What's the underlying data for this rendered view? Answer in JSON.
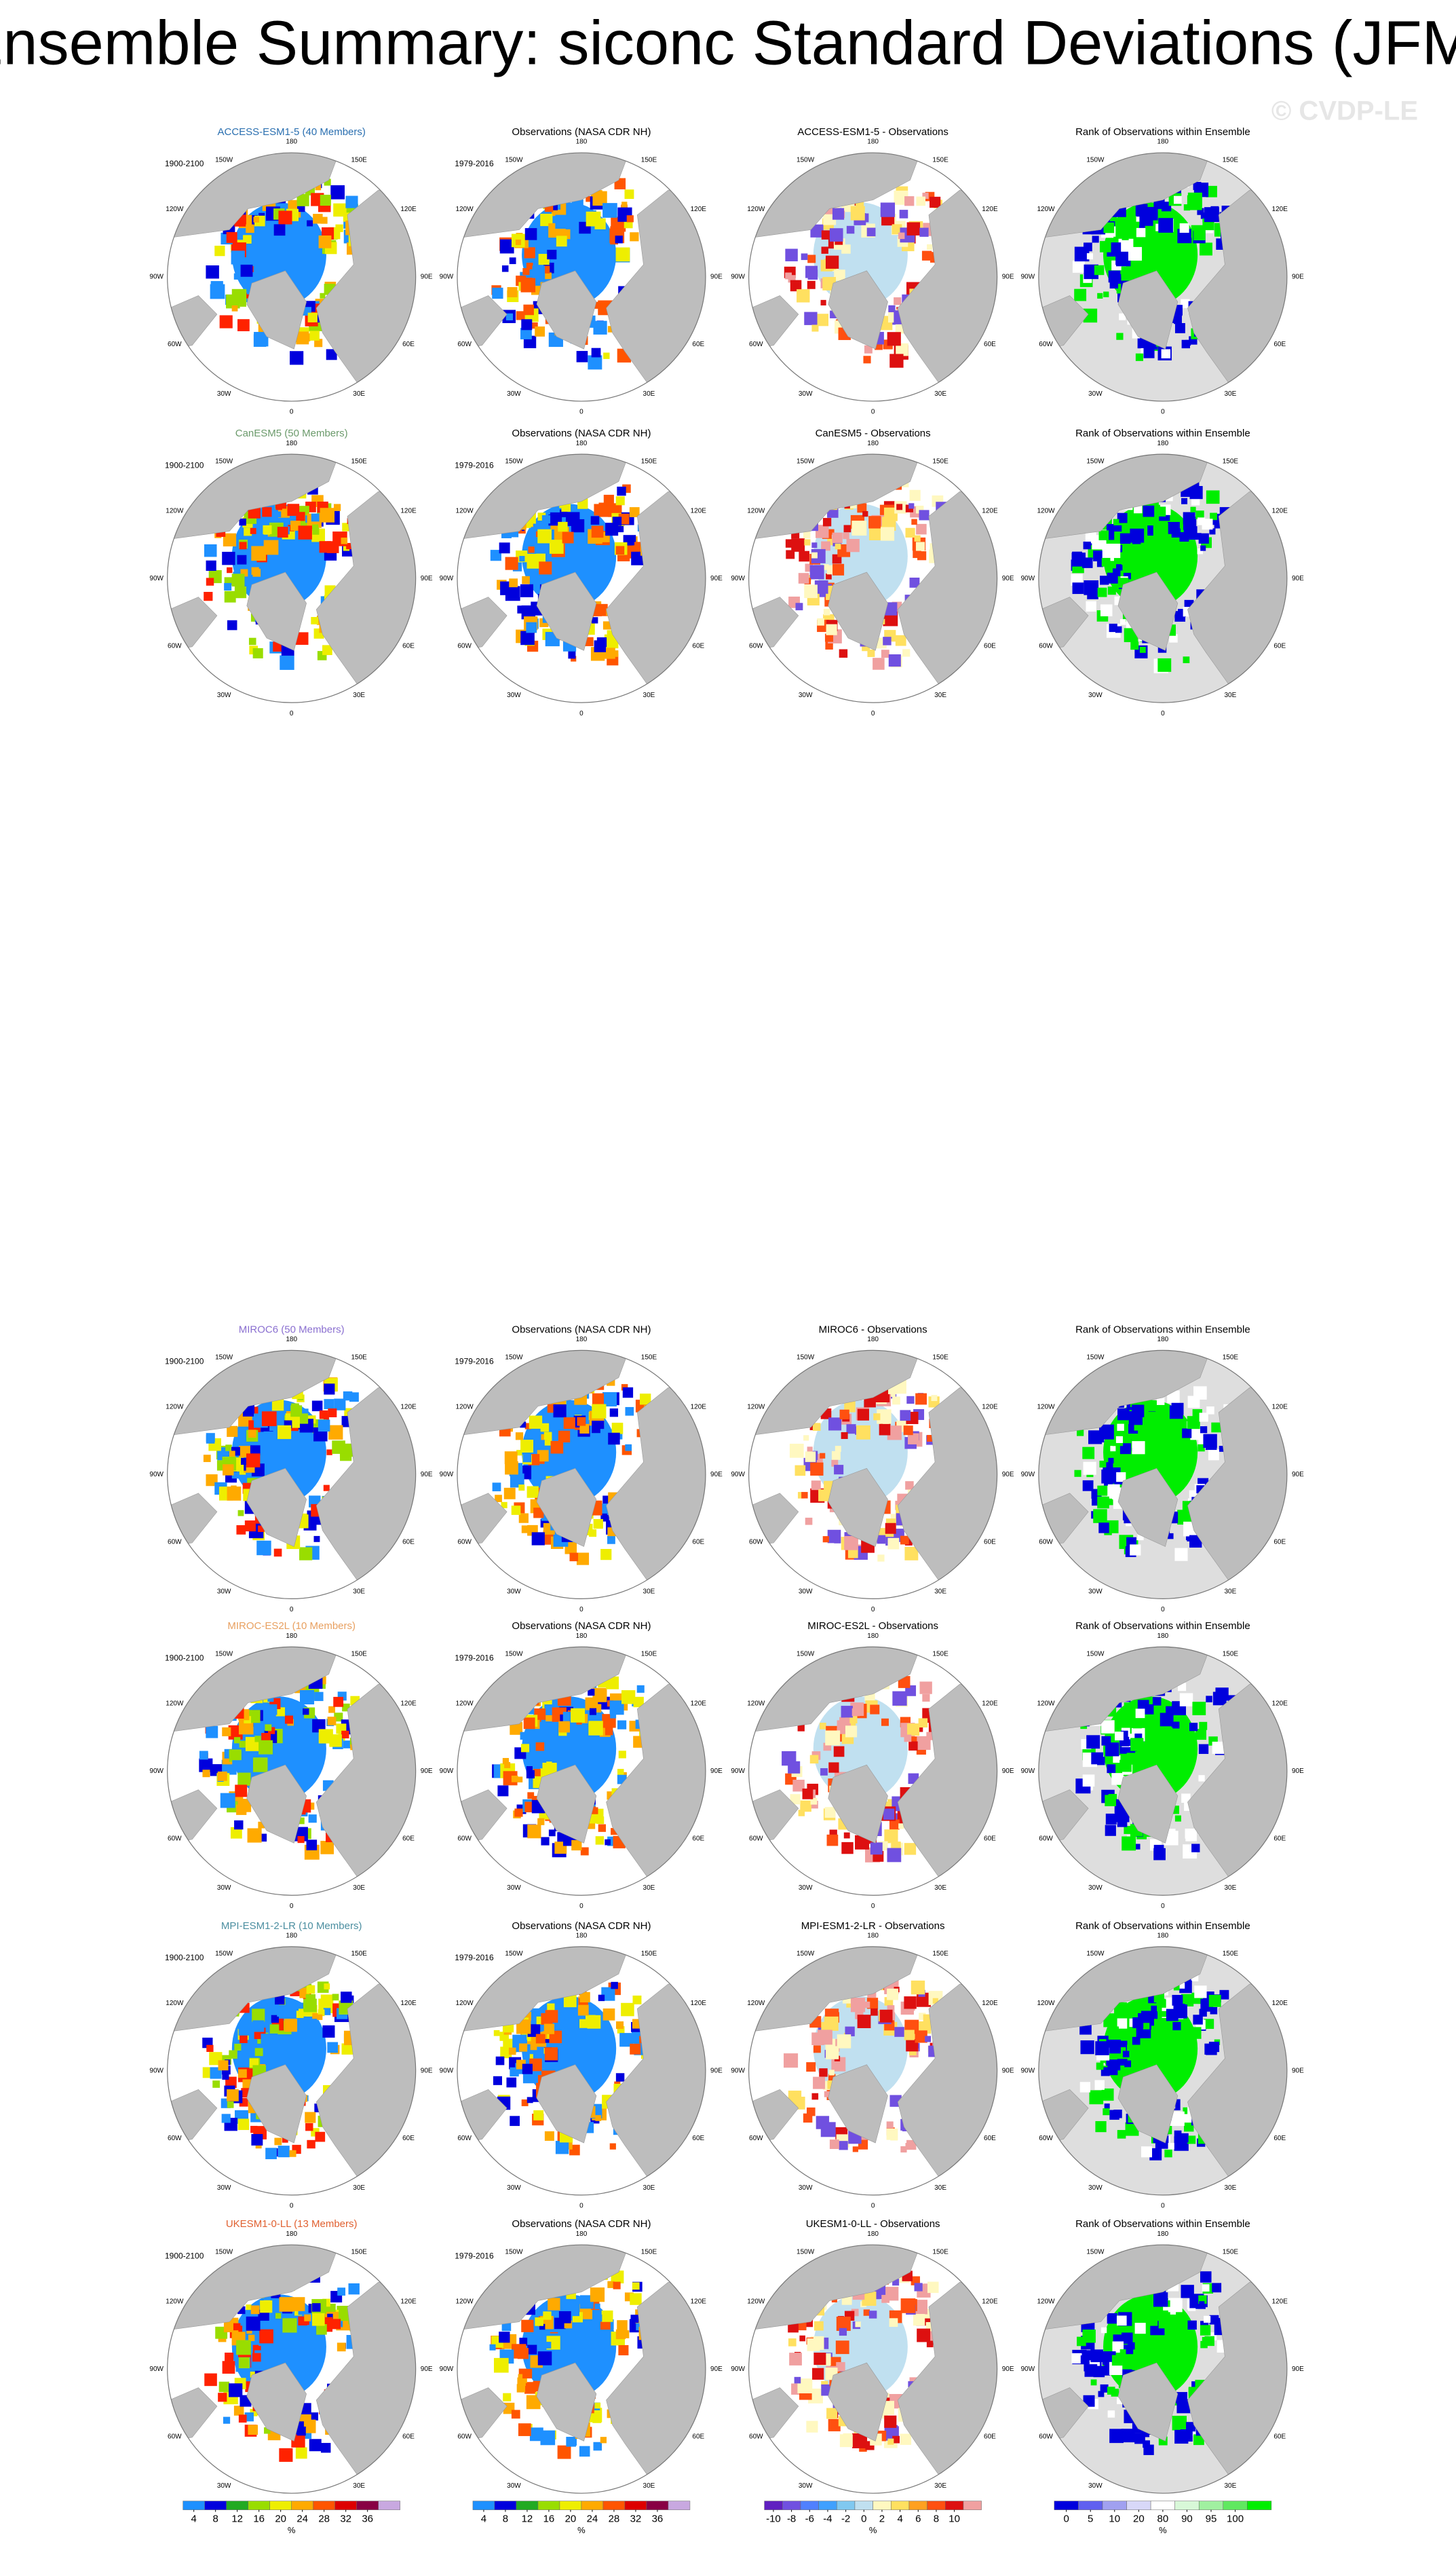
{
  "title": "Ensemble Summary: siconc Standard Deviations (JFM)",
  "watermark": "© CVDP-LE",
  "lon_labels": [
    "180",
    "150W",
    "150E",
    "120W",
    "120E",
    "90W",
    "90E",
    "60W",
    "60E",
    "30W",
    "30E",
    "0"
  ],
  "rows": [
    {
      "model_title": "ACCESS-ESM1-5 (40 Members)",
      "title_color": "#2a6fb0",
      "model_period": "1900-2100",
      "obs_title": "Observations (NASA CDR NH)",
      "obs_period": "1979-2016",
      "diff_title": "ACCESS-ESM1-5 - Observations",
      "rank_title": "Rank of Observations within Ensemble"
    },
    {
      "model_title": "CanESM5 (50 Members)",
      "title_color": "#6b9a6b",
      "model_period": "1900-2100",
      "obs_title": "Observations (NASA CDR NH)",
      "obs_period": "1979-2016",
      "diff_title": "CanESM5 - Observations",
      "rank_title": "Rank of Observations within Ensemble"
    },
    {
      "model_title": "MIROC6 (50 Members)",
      "title_color": "#8a6fd0",
      "model_period": "1900-2100",
      "obs_title": "Observations (NASA CDR NH)",
      "obs_period": "1979-2016",
      "diff_title": "MIROC6 - Observations",
      "rank_title": "Rank of Observations within Ensemble"
    },
    {
      "model_title": "MIROC-ES2L (10 Members)",
      "title_color": "#e8a060",
      "model_period": "1900-2100",
      "obs_title": "Observations (NASA CDR NH)",
      "obs_period": "1979-2016",
      "diff_title": "MIROC-ES2L - Observations",
      "rank_title": "Rank of Observations within Ensemble"
    },
    {
      "model_title": "MPI-ESM1-2-LR (10 Members)",
      "title_color": "#4b8ea0",
      "model_period": "1900-2100",
      "obs_title": "Observations (NASA CDR NH)",
      "obs_period": "1979-2016",
      "diff_title": "MPI-ESM1-2-LR - Observations",
      "rank_title": "Rank of Observations within Ensemble"
    },
    {
      "model_title": "UKESM1-0-LL (13 Members)",
      "title_color": "#e06030",
      "model_period": "1900-2100",
      "obs_title": "Observations (NASA CDR NH)",
      "obs_period": "1979-2016",
      "diff_title": "UKESM1-0-LL - Observations",
      "rank_title": "Rank of Observations within Ensemble"
    }
  ],
  "colorbars": [
    {
      "ticks": [
        4,
        8,
        12,
        16,
        20,
        24,
        28,
        32,
        36
      ],
      "unit": "%",
      "colors": [
        "#1e90ff",
        "#0000dd",
        "#22aa22",
        "#99dd00",
        "#eeee00",
        "#ffaa00",
        "#ff5500",
        "#dd0000",
        "#880044",
        "#c8a8e0"
      ]
    },
    {
      "ticks": [
        4,
        8,
        12,
        16,
        20,
        24,
        28,
        32,
        36
      ],
      "unit": "%",
      "colors": [
        "#1e90ff",
        "#0000dd",
        "#22aa22",
        "#99dd00",
        "#eeee00",
        "#ffaa00",
        "#ff5500",
        "#dd0000",
        "#880044",
        "#c8a8e0"
      ]
    },
    {
      "ticks": [
        -10,
        -8,
        -6,
        -4,
        -2,
        0,
        2,
        4,
        6,
        8,
        10
      ],
      "unit": "%",
      "colors": [
        "#6020c0",
        "#7050e0",
        "#5080ff",
        "#40a0ff",
        "#80c8f0",
        "#c0e0f0",
        "#fff8c0",
        "#ffe060",
        "#ffa020",
        "#ff5010",
        "#dd1010",
        "#f0a0a0"
      ]
    },
    {
      "ticks": [
        0,
        5,
        10,
        20,
        80,
        90,
        95,
        100
      ],
      "unit": "%",
      "colors": [
        "#0000dd",
        "#6060f0",
        "#a0a0f0",
        "#d8d8f8",
        "#ffffff",
        "#d8f8d8",
        "#a0f0a0",
        "#60e860",
        "#00ee00"
      ]
    }
  ]
}
